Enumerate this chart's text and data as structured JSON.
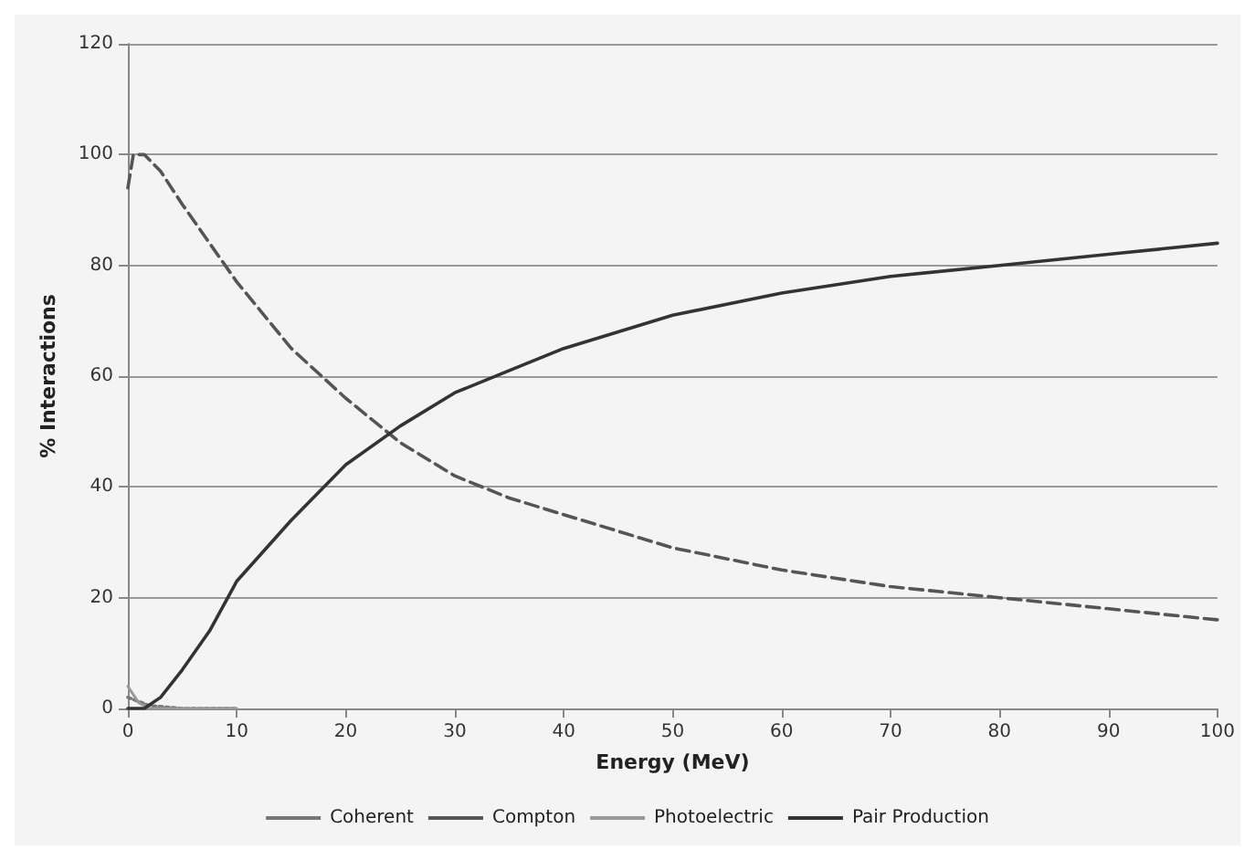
{
  "chart_data": {
    "type": "line",
    "xlabel": "Energy (MeV)",
    "ylabel": "% Interactions",
    "xlim": [
      0,
      100
    ],
    "xticks": [
      0,
      10,
      20,
      30,
      40,
      50,
      60,
      70,
      80,
      90,
      100
    ],
    "ylim": [
      0,
      120
    ],
    "yticks": [
      0,
      20,
      40,
      60,
      80,
      100,
      120
    ],
    "grid": "y",
    "legend": "bottom",
    "marker": "none",
    "series": [
      {
        "name": "Coherent",
        "color": "#777777",
        "line_style": "dotted",
        "x": [
          0,
          2,
          5,
          10
        ],
        "values": [
          2,
          0.5,
          0,
          0
        ]
      },
      {
        "name": "Compton",
        "color": "#555555",
        "line_style": "dashed",
        "x": [
          0,
          0.5,
          1.5,
          3,
          5,
          7.5,
          10,
          15,
          20,
          25,
          30,
          35,
          40,
          50,
          60,
          70,
          80,
          90,
          100
        ],
        "values": [
          94,
          100,
          100,
          97,
          91,
          84,
          77,
          65,
          56,
          48,
          42,
          38,
          35,
          29,
          25,
          22,
          20,
          18,
          16
        ]
      },
      {
        "name": "Photoelectric",
        "color": "#999999",
        "line_style": "solid",
        "x": [
          0,
          1,
          2,
          5,
          10
        ],
        "values": [
          4,
          1,
          0,
          0,
          0
        ]
      },
      {
        "name": "Pair Production",
        "color": "#333333",
        "line_style": "solid",
        "x": [
          0,
          1.5,
          3,
          5,
          7.5,
          10,
          15,
          20,
          25,
          30,
          35,
          40,
          50,
          60,
          70,
          80,
          90,
          100
        ],
        "values": [
          0,
          0,
          2,
          7,
          14,
          23,
          34,
          44,
          51,
          57,
          61,
          65,
          71,
          75,
          78,
          80,
          82,
          84
        ]
      }
    ]
  }
}
